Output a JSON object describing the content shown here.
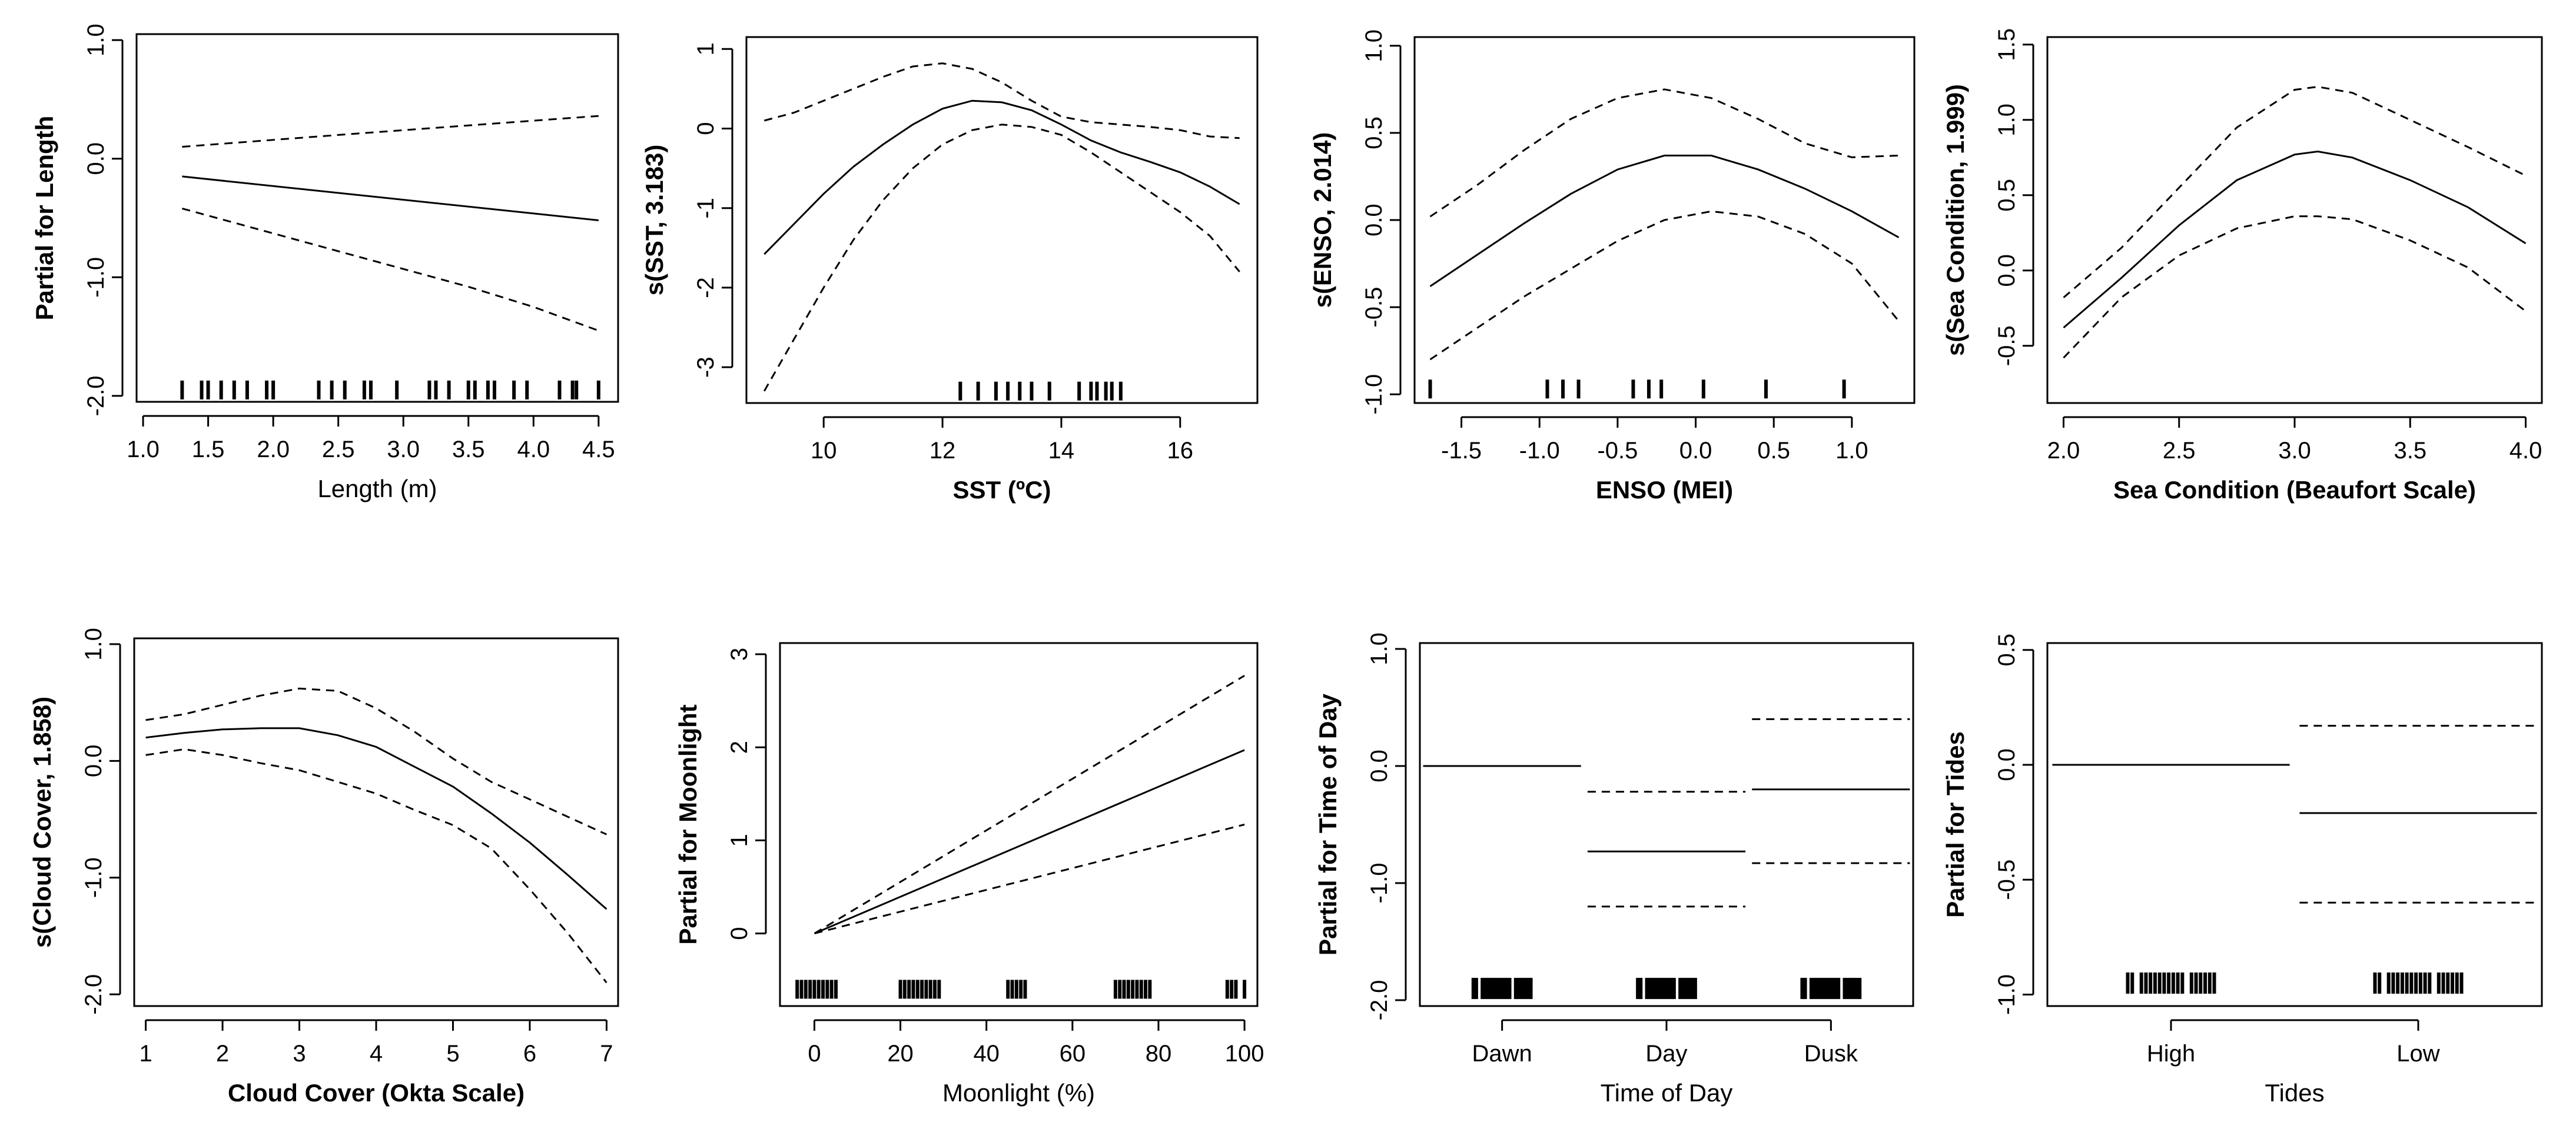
{
  "chart_data": [
    {
      "type": "line",
      "panel": "length",
      "xlabel": "Length (m)",
      "xlabel_bold": false,
      "ylabel": "Partial for Length",
      "xlim": [
        0.95,
        4.65
      ],
      "ylim": [
        -2.05,
        1.05
      ],
      "xticks": [
        1.0,
        1.5,
        2.0,
        2.5,
        3.0,
        3.5,
        4.0,
        4.5
      ],
      "xtick_labels": [
        "1.0",
        "1.5",
        "2.0",
        "2.5",
        "3.0",
        "3.5",
        "4.0",
        "4.5"
      ],
      "yticks": [
        -2.0,
        -1.0,
        0.0,
        1.0
      ],
      "ytick_labels": [
        "-2.0",
        "-1.0",
        "0.0",
        "1.0"
      ],
      "series": [
        {
          "name": "fit",
          "style": "solid",
          "x": [
            1.3,
            4.5
          ],
          "y": [
            -0.15,
            -0.52
          ]
        },
        {
          "name": "upper",
          "style": "dashed",
          "x": [
            1.3,
            2.5,
            3.5,
            4.5
          ],
          "y": [
            0.1,
            0.2,
            0.28,
            0.36
          ]
        },
        {
          "name": "lower",
          "style": "dashed",
          "x": [
            1.3,
            2.0,
            2.5,
            3.0,
            3.5,
            4.0,
            4.5
          ],
          "y": [
            -0.42,
            -0.63,
            -0.78,
            -0.93,
            -1.08,
            -1.25,
            -1.45
          ]
        }
      ],
      "rug": [
        1.3,
        1.45,
        1.5,
        1.6,
        1.7,
        1.8,
        1.95,
        2.0,
        2.35,
        2.45,
        2.55,
        2.7,
        2.75,
        2.95,
        3.2,
        3.25,
        3.35,
        3.5,
        3.55,
        3.65,
        3.7,
        3.85,
        3.95,
        4.2,
        4.3,
        4.33,
        4.5
      ],
      "rug_y": -1.95
    },
    {
      "type": "line",
      "panel": "sst",
      "xlabel": "SST (ºC)",
      "xlabel_bold": true,
      "ylabel": "s(SST, 3.183)",
      "xlim": [
        8.7,
        17.3
      ],
      "ylim": [
        -3.45,
        1.15
      ],
      "xticks": [
        10,
        12,
        14,
        16
      ],
      "xtick_labels": [
        "10",
        "12",
        "14",
        "16"
      ],
      "yticks": [
        -3,
        -2,
        -1,
        0,
        1
      ],
      "ytick_labels": [
        "-3",
        "-2",
        "-1",
        "0",
        "1"
      ],
      "series": [
        {
          "name": "fit",
          "style": "solid",
          "x": [
            9.0,
            9.5,
            10.0,
            10.5,
            11.0,
            11.5,
            12.0,
            12.5,
            13.0,
            13.5,
            14.0,
            14.5,
            15.0,
            15.5,
            16.0,
            16.5,
            17.0
          ],
          "y": [
            -1.58,
            -1.2,
            -0.82,
            -0.48,
            -0.2,
            0.05,
            0.25,
            0.35,
            0.33,
            0.23,
            0.05,
            -0.15,
            -0.3,
            -0.42,
            -0.55,
            -0.73,
            -0.95
          ]
        },
        {
          "name": "upper",
          "style": "dashed",
          "x": [
            9.0,
            9.5,
            10.0,
            10.5,
            11.0,
            11.5,
            12.0,
            12.5,
            13.0,
            13.5,
            14.0,
            14.5,
            15.0,
            15.5,
            16.0,
            16.5,
            17.0
          ],
          "y": [
            0.1,
            0.2,
            0.35,
            0.5,
            0.65,
            0.78,
            0.82,
            0.75,
            0.58,
            0.35,
            0.15,
            0.08,
            0.05,
            0.02,
            -0.02,
            -0.1,
            -0.12
          ]
        },
        {
          "name": "lower",
          "style": "dashed",
          "x": [
            9.0,
            9.5,
            10.0,
            10.5,
            11.0,
            11.5,
            12.0,
            12.5,
            13.0,
            13.5,
            14.0,
            14.5,
            15.0,
            15.5,
            16.0,
            16.5,
            17.0
          ],
          "y": [
            -3.3,
            -2.65,
            -2.0,
            -1.4,
            -0.9,
            -0.5,
            -0.2,
            -0.02,
            0.05,
            0.02,
            -0.08,
            -0.3,
            -0.55,
            -0.8,
            -1.05,
            -1.35,
            -1.8
          ]
        }
      ],
      "rug": [
        12.3,
        12.6,
        12.9,
        13.1,
        13.3,
        13.5,
        13.8,
        14.3,
        14.5,
        14.6,
        14.75,
        14.85,
        15.0
      ],
      "rug_y": -3.3
    },
    {
      "type": "line",
      "panel": "enso",
      "xlabel": "ENSO (MEI)",
      "xlabel_bold": true,
      "ylabel": "s(ENSO, 2.014)",
      "xlim": [
        -1.8,
        1.4
      ],
      "ylim": [
        -1.05,
        1.05
      ],
      "xticks": [
        -1.5,
        -1.0,
        -0.5,
        0.0,
        0.5,
        1.0
      ],
      "xtick_labels": [
        "-1.5",
        "-1.0",
        "-0.5",
        "0.0",
        "0.5",
        "1.0"
      ],
      "yticks": [
        -1.0,
        -0.5,
        0.0,
        0.5,
        1.0
      ],
      "ytick_labels": [
        "-1.0",
        "-0.5",
        "0.0",
        "0.5",
        "1.0"
      ],
      "series": [
        {
          "name": "fit",
          "style": "solid",
          "x": [
            -1.7,
            -1.4,
            -1.1,
            -0.8,
            -0.5,
            -0.2,
            0.1,
            0.4,
            0.7,
            1.0,
            1.3
          ],
          "y": [
            -0.38,
            -0.2,
            -0.02,
            0.15,
            0.29,
            0.37,
            0.37,
            0.29,
            0.18,
            0.05,
            -0.1
          ]
        },
        {
          "name": "upper",
          "style": "dashed",
          "x": [
            -1.7,
            -1.4,
            -1.1,
            -0.8,
            -0.5,
            -0.2,
            0.1,
            0.4,
            0.7,
            1.0,
            1.3
          ],
          "y": [
            0.02,
            0.2,
            0.4,
            0.58,
            0.7,
            0.75,
            0.7,
            0.58,
            0.44,
            0.36,
            0.37
          ]
        },
        {
          "name": "lower",
          "style": "dashed",
          "x": [
            -1.7,
            -1.4,
            -1.1,
            -0.8,
            -0.5,
            -0.2,
            0.1,
            0.4,
            0.7,
            1.0,
            1.3
          ],
          "y": [
            -0.8,
            -0.62,
            -0.44,
            -0.28,
            -0.12,
            0.0,
            0.05,
            0.02,
            -0.08,
            -0.25,
            -0.58
          ]
        }
      ],
      "rug": [
        -1.7,
        -0.95,
        -0.85,
        -0.75,
        -0.4,
        -0.3,
        -0.22,
        0.05,
        0.45,
        0.95
      ],
      "rug_y": -0.97
    },
    {
      "type": "line",
      "panel": "sea",
      "xlabel": "Sea Condition (Beaufort Scale)",
      "xlabel_bold": true,
      "ylabel": "s(Sea Condition, 1.999)",
      "xlim": [
        1.93,
        4.07
      ],
      "ylim": [
        -0.88,
        1.55
      ],
      "xticks": [
        2.0,
        2.5,
        3.0,
        3.5,
        4.0
      ],
      "xtick_labels": [
        "2.0",
        "2.5",
        "3.0",
        "3.5",
        "4.0"
      ],
      "yticks": [
        -0.5,
        0.0,
        0.5,
        1.0,
        1.5
      ],
      "ytick_labels": [
        "-0.5",
        "0.0",
        "0.5",
        "1.0",
        "1.5"
      ],
      "series": [
        {
          "name": "fit",
          "style": "solid",
          "x": [
            2.0,
            2.25,
            2.5,
            2.75,
            3.0,
            3.1,
            3.25,
            3.5,
            3.75,
            4.0
          ],
          "y": [
            -0.38,
            -0.05,
            0.3,
            0.6,
            0.77,
            0.79,
            0.75,
            0.6,
            0.42,
            0.18
          ]
        },
        {
          "name": "upper",
          "style": "dashed",
          "x": [
            2.0,
            2.25,
            2.5,
            2.75,
            3.0,
            3.1,
            3.25,
            3.5,
            3.75,
            4.0
          ],
          "y": [
            -0.18,
            0.15,
            0.55,
            0.95,
            1.2,
            1.22,
            1.18,
            1.0,
            0.82,
            0.63
          ]
        },
        {
          "name": "lower",
          "style": "dashed",
          "x": [
            2.0,
            2.25,
            2.5,
            2.75,
            3.0,
            3.1,
            3.25,
            3.5,
            3.75,
            4.0
          ],
          "y": [
            -0.58,
            -0.18,
            0.1,
            0.28,
            0.36,
            0.36,
            0.34,
            0.2,
            0.02,
            -0.27
          ]
        }
      ],
      "rug": [],
      "rug_y": -0.8
    },
    {
      "type": "line",
      "panel": "cloud",
      "xlabel": "Cloud Cover (Okta Scale)",
      "xlabel_bold": true,
      "ylabel": "s(Cloud Cover, 1.858)",
      "xlim": [
        0.85,
        7.15
      ],
      "ylim": [
        -2.1,
        1.05
      ],
      "xticks": [
        1,
        2,
        3,
        4,
        5,
        6,
        7
      ],
      "xtick_labels": [
        "1",
        "2",
        "3",
        "4",
        "5",
        "6",
        "7"
      ],
      "yticks": [
        -2.0,
        -1.0,
        0.0,
        1.0
      ],
      "ytick_labels": [
        "-2.0",
        "-1.0",
        "0.0",
        "1.0"
      ],
      "series": [
        {
          "name": "fit",
          "style": "solid",
          "x": [
            1.0,
            1.5,
            2.0,
            2.5,
            3.0,
            3.5,
            4.0,
            4.5,
            5.0,
            5.5,
            6.0,
            6.5,
            7.0
          ],
          "y": [
            0.2,
            0.24,
            0.27,
            0.28,
            0.28,
            0.22,
            0.12,
            -0.05,
            -0.22,
            -0.45,
            -0.7,
            -0.98,
            -1.27
          ]
        },
        {
          "name": "upper",
          "style": "dashed",
          "x": [
            1.0,
            1.5,
            2.0,
            2.5,
            3.0,
            3.5,
            4.0,
            4.5,
            5.0,
            5.5,
            6.0,
            6.5,
            7.0
          ],
          "y": [
            0.35,
            0.4,
            0.48,
            0.56,
            0.62,
            0.6,
            0.45,
            0.25,
            0.02,
            -0.18,
            -0.33,
            -0.48,
            -0.63
          ]
        },
        {
          "name": "lower",
          "style": "dashed",
          "x": [
            1.0,
            1.5,
            2.0,
            2.5,
            3.0,
            3.5,
            4.0,
            4.5,
            5.0,
            5.5,
            6.0,
            6.5,
            7.0
          ],
          "y": [
            0.05,
            0.1,
            0.05,
            -0.02,
            -0.08,
            -0.18,
            -0.28,
            -0.42,
            -0.55,
            -0.75,
            -1.1,
            -1.48,
            -1.9
          ]
        }
      ],
      "rug": [],
      "rug_y": -2.0
    },
    {
      "type": "line",
      "panel": "moon",
      "xlabel": "Moonlight (%)",
      "xlabel_bold": false,
      "ylabel": "Partial for Moonlight",
      "xlim": [
        -8,
        103
      ],
      "ylim": [
        -0.78,
        3.12
      ],
      "xticks": [
        0,
        20,
        40,
        60,
        80,
        100
      ],
      "xtick_labels": [
        "0",
        "20",
        "40",
        "60",
        "80",
        "100"
      ],
      "yticks": [
        0,
        1,
        2,
        3
      ],
      "ytick_labels": [
        "0",
        "1",
        "2",
        "3"
      ],
      "series": [
        {
          "name": "fit",
          "style": "solid",
          "x": [
            0,
            100
          ],
          "y": [
            0,
            1.97
          ]
        },
        {
          "name": "upper",
          "style": "dashed",
          "x": [
            0,
            100
          ],
          "y": [
            0,
            2.77
          ]
        },
        {
          "name": "lower",
          "style": "dashed",
          "x": [
            0,
            100
          ],
          "y": [
            0,
            1.17
          ]
        }
      ],
      "rug": [
        -4,
        -3,
        -2,
        -1,
        0,
        1,
        2,
        3,
        4,
        5,
        20,
        21,
        22,
        23,
        24,
        25,
        26,
        27,
        28,
        29,
        45,
        46,
        47,
        48,
        49,
        70,
        71,
        72,
        73,
        74,
        75,
        76,
        77,
        78,
        96,
        97,
        98,
        100
      ],
      "rug_y": -0.6
    },
    {
      "type": "categorical",
      "panel": "time",
      "xlabel": "Time of Day",
      "xlabel_bold": false,
      "ylabel": "Partial for Time of Day",
      "xlim": [
        0,
        3
      ],
      "ylim": [
        -2.05,
        1.05
      ],
      "categories": [
        "Dawn",
        "Day",
        "Dusk"
      ],
      "yticks": [
        -2.0,
        -1.0,
        0.0,
        1.0
      ],
      "ytick_labels": [
        "-2.0",
        "-1.0",
        "0.0",
        "1.0"
      ],
      "fit": [
        0.0,
        -0.73,
        -0.2
      ],
      "upper": [
        null,
        -0.22,
        0.4
      ],
      "lower": [
        null,
        -1.2,
        -0.83
      ],
      "rug_y": -1.9
    },
    {
      "type": "categorical",
      "panel": "tides",
      "xlabel": "Tides",
      "xlabel_bold": false,
      "ylabel": "Partial for Tides",
      "xlim": [
        0,
        2
      ],
      "ylim": [
        -1.05,
        0.53
      ],
      "categories": [
        "High",
        "Low"
      ],
      "yticks": [
        -1.0,
        -0.5,
        0.0,
        0.5
      ],
      "ytick_labels": [
        "-1.0",
        "-0.5",
        "0.0",
        "0.5"
      ],
      "fit": [
        0.0,
        -0.21
      ],
      "upper": [
        null,
        0.17
      ],
      "lower": [
        null,
        -0.6
      ],
      "rug_y": -0.95
    }
  ]
}
